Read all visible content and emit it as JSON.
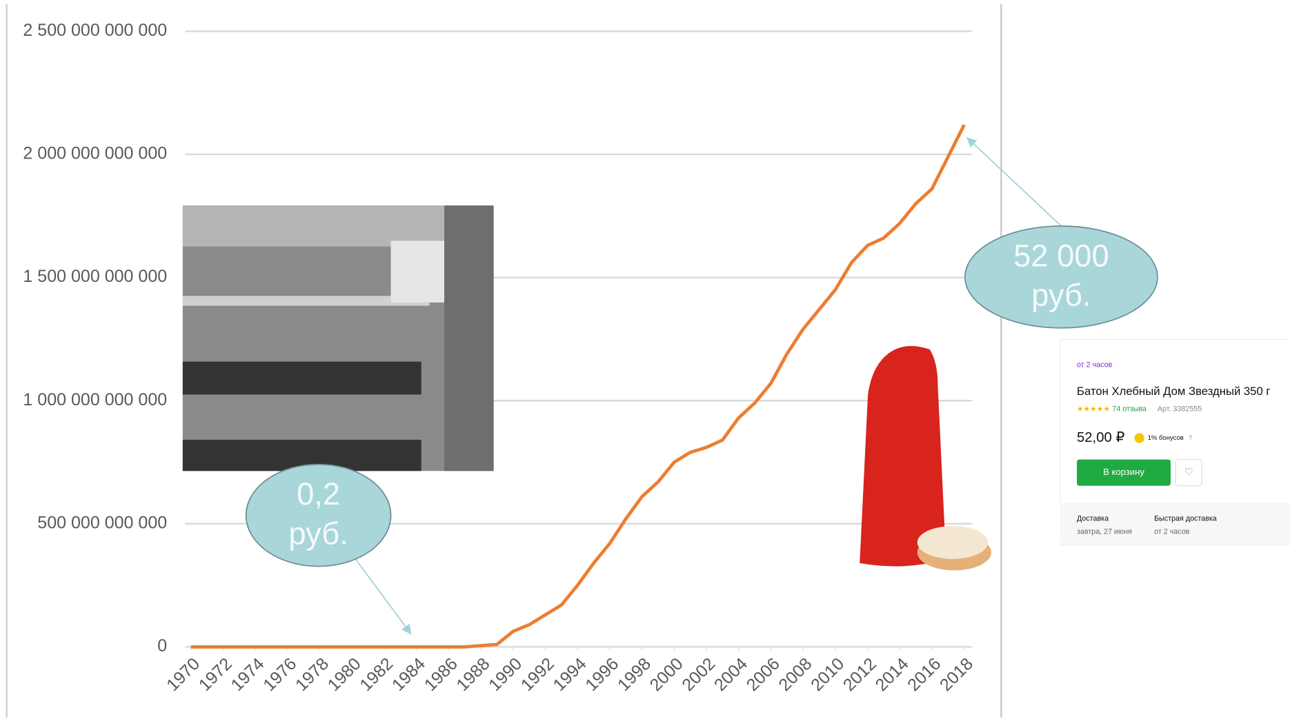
{
  "chart_data": {
    "type": "line",
    "x": [
      1970,
      1971,
      1972,
      1973,
      1974,
      1975,
      1976,
      1977,
      1978,
      1979,
      1980,
      1981,
      1982,
      1983,
      1984,
      1985,
      1986,
      1987,
      1988,
      1989,
      1990,
      1991,
      1992,
      1993,
      1994,
      1995,
      1996,
      1997,
      1998,
      1999,
      2000,
      2001,
      2002,
      2003,
      2004,
      2005,
      2006,
      2007,
      2008,
      2009,
      2010,
      2011,
      2012,
      2013,
      2014,
      2015,
      2016,
      2017,
      2018
    ],
    "values": [
      0,
      0,
      0,
      0,
      0,
      0,
      0,
      0,
      0,
      0,
      0,
      0,
      0,
      0,
      0,
      0,
      0,
      0,
      5000000000,
      10000000000,
      63000000000,
      90000000000,
      130000000000,
      170000000000,
      250000000000,
      340000000000,
      420000000000,
      520000000000,
      610000000000,
      670000000000,
      750000000000,
      790000000000,
      810000000000,
      840000000000,
      930000000000,
      990000000000,
      1070000000000,
      1190000000000,
      1290000000000,
      1370000000000,
      1450000000000,
      1560000000000,
      1630000000000,
      1660000000000,
      1720000000000,
      1800000000000,
      1860000000000,
      1990000000000,
      2120000000000
    ],
    "color": "#ed7d31",
    "xlim": [
      1970,
      2018
    ],
    "xticks": [
      1970,
      1972,
      1974,
      1976,
      1978,
      1980,
      1982,
      1984,
      1986,
      1988,
      1990,
      1992,
      1994,
      1996,
      1998,
      2000,
      2002,
      2004,
      2006,
      2008,
      2010,
      2012,
      2014,
      2016,
      2018
    ],
    "ylim": [
      0,
      2500000000000
    ],
    "yticks": [
      0,
      {
        "value": 500000000000,
        "label": "500 000 000 000"
      },
      {
        "value": 1000000000000,
        "label": "1 000 000 000 000"
      },
      {
        "value": 1500000000000,
        "label": "1 500 000 000 000"
      },
      {
        "value": 2000000000000,
        "label": "2 000 000 000 000"
      },
      {
        "value": 2500000000000,
        "label": "2 500 000 000 000"
      }
    ],
    "grid": true,
    "annotations": [
      {
        "lines": [
          "0,2",
          "руб."
        ]
      },
      {
        "lines": [
          "52 000",
          "руб."
        ]
      }
    ]
  },
  "product_card": {
    "delivery_badge": "от 2 часов",
    "title": "Батон Хлебный Дом Звездный 350 г",
    "reviews": "74 отзыва",
    "article": "Арт. 3382555",
    "price": "52,00 ₽",
    "bonus": "1% бонусов",
    "help": "?",
    "button": "В корзину",
    "delivery_label": "Доставка",
    "delivery_value": "завтра, 27 июня",
    "fast_label": "Быстрая доставка",
    "fast_value": "от 2 часов"
  }
}
